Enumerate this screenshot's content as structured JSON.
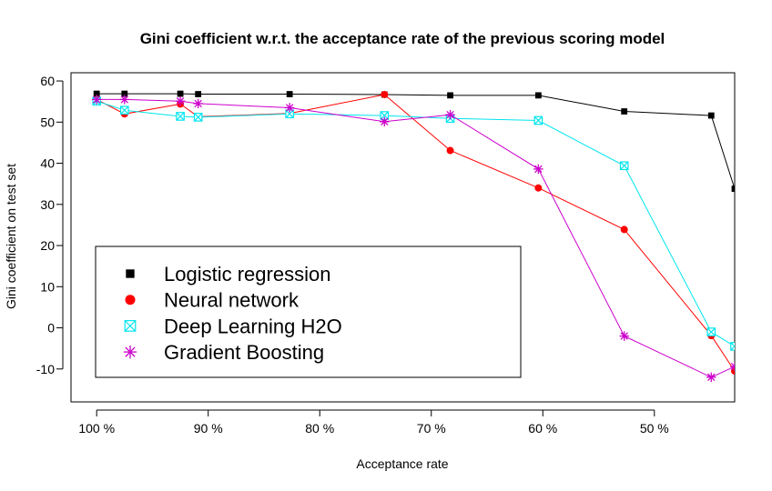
{
  "chart_data": {
    "type": "line",
    "title": "Gini coefficient w.r.t. the acceptance rate of the previous scoring model",
    "xlabel": "Acceptance rate",
    "ylabel": "Gini coefficient on test set",
    "x_reversed": true,
    "xlim": [
      42.8,
      102.3
    ],
    "ylim": [
      -18,
      62
    ],
    "x_ticks": [
      {
        "value": 100,
        "label": "100 %"
      },
      {
        "value": 90,
        "label": "90 %"
      },
      {
        "value": 80,
        "label": "80 %"
      },
      {
        "value": 70,
        "label": "70 %"
      },
      {
        "value": 60,
        "label": "60 %"
      },
      {
        "value": 50,
        "label": "50 %"
      }
    ],
    "y_ticks": [
      {
        "value": -10,
        "label": "-10"
      },
      {
        "value": 0,
        "label": "0"
      },
      {
        "value": 10,
        "label": "10"
      },
      {
        "value": 20,
        "label": "20"
      },
      {
        "value": 30,
        "label": "30"
      },
      {
        "value": 40,
        "label": "40"
      },
      {
        "value": 50,
        "label": "50"
      },
      {
        "value": 60,
        "label": "60"
      }
    ],
    "x": [
      100,
      97.5,
      92.5,
      90.9,
      82.7,
      74.2,
      68.3,
      60.4,
      52.7,
      44.9,
      42.8
    ],
    "series": [
      {
        "name": "Logistic regression",
        "color": "#000000",
        "marker": "square",
        "values": [
          56.9,
          56.9,
          56.9,
          56.8,
          56.8,
          56.7,
          56.5,
          56.5,
          52.6,
          51.6,
          33.8
        ]
      },
      {
        "name": "Neural network",
        "color": "#ff0000",
        "marker": "circle",
        "values": [
          55.5,
          52.0,
          54.4,
          51.3,
          52.1,
          56.7,
          43.1,
          34.0,
          23.9,
          -1.9,
          -10.5
        ]
      },
      {
        "name": "Deep Learning H2O",
        "color": "#00e5ee",
        "marker": "boxx",
        "values": [
          55.1,
          52.9,
          51.4,
          51.2,
          52.0,
          51.6,
          50.9,
          50.4,
          39.4,
          -1.0,
          -4.5
        ]
      },
      {
        "name": "Gradient Boosting",
        "color": "#cc00cc",
        "marker": "star",
        "values": [
          55.5,
          55.5,
          55.1,
          54.5,
          53.5,
          50.1,
          51.8,
          38.6,
          -2.0,
          -12.0,
          -9.4
        ]
      }
    ],
    "grid": false,
    "legend": {
      "position": "bottom-left"
    }
  }
}
